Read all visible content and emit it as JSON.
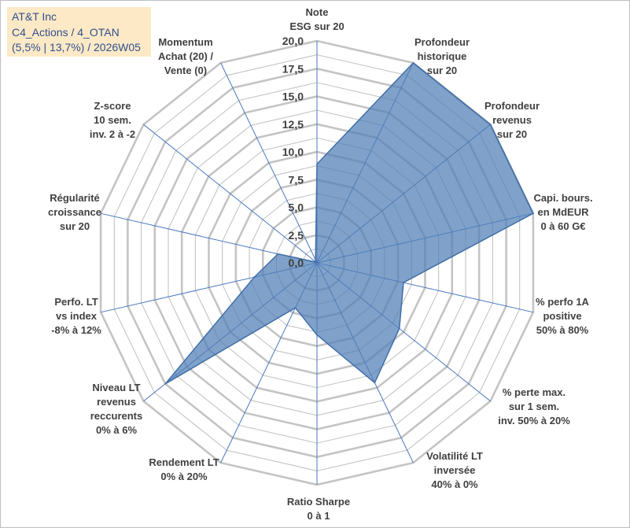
{
  "title": {
    "line1": "AT&T Inc",
    "line2": "C4_Actions / 4_OTAN",
    "line3": "(5,5% | 13,7%) / 2026W05"
  },
  "chart_data": {
    "type": "radar",
    "rmin": 0,
    "rmax": 20,
    "ticks": [
      0,
      2.5,
      5,
      7.5,
      10,
      12.5,
      15,
      17.5,
      20
    ],
    "tick_labels": [
      "0,0",
      "2,5",
      "5,0",
      "7,5",
      "10,0",
      "12,5",
      "15,0",
      "17,5",
      "20,0"
    ],
    "fill_color": "#4f7eb5",
    "line_color": "#3f6ea8",
    "grid_color": "#c4c4c4",
    "axes": [
      {
        "label": [
          "Note",
          "ESG sur 20"
        ],
        "value": 8.9
      },
      {
        "label": [
          "Profondeur",
          "historique",
          "sur 20"
        ],
        "value": 20
      },
      {
        "label": [
          "Profondeur",
          "revenus",
          "sur 20"
        ],
        "value": 20
      },
      {
        "label": [
          "Capi. bours.",
          "en MdEUR",
          "0 à 60 G€"
        ],
        "value": 20
      },
      {
        "label": [
          "% perfo 1A",
          "positive",
          "50% à 80%"
        ],
        "value": 8
      },
      {
        "label": [
          "% perte max.",
          "sur 1 sem.",
          "inv. 50% à 20%"
        ],
        "value": 9.5
      },
      {
        "label": [
          "Volatilité LT",
          "inversée",
          "40% à 0%"
        ],
        "value": 12
      },
      {
        "label": [
          "Ratio Sharpe",
          "0 à 1"
        ],
        "value": 6.5
      },
      {
        "label": [
          "Rendement LT",
          "0% à 20%"
        ],
        "value": 4.5
      },
      {
        "label": [
          "Niveau LT",
          "revenus",
          "reccurents",
          "0% à 6%"
        ],
        "value": 17.5
      },
      {
        "label": [
          "Perfo. LT",
          "vs index",
          "-8% à 12%"
        ],
        "value": 5.8
      },
      {
        "label": [
          "Régularité",
          "croissance",
          "sur 20"
        ],
        "value": 3.6
      },
      {
        "label": [
          "Z-score",
          "10 sem.",
          "inv. 2 à -2"
        ],
        "value": 0.1
      },
      {
        "label": [
          "Momentum",
          "Achat (20) /",
          "Vente (0)"
        ],
        "value": 0.3
      }
    ]
  }
}
